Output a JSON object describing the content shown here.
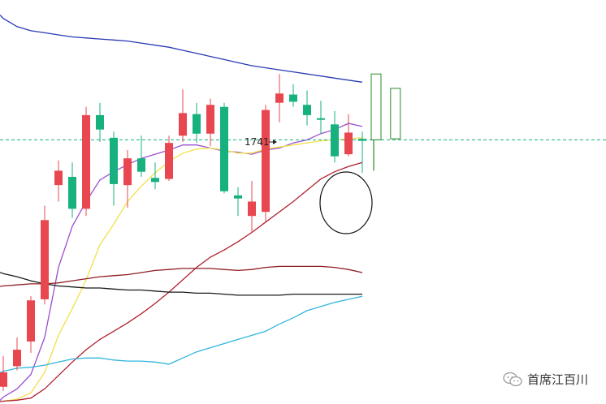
{
  "chart_data": {
    "type": "candlestick",
    "price_annotation": "1741",
    "colors": {
      "up": "#e8474f",
      "down": "#16b17e",
      "projection": "#2a8a2a",
      "reference": "#16b17e"
    },
    "ylim": [
      1460,
      1840
    ],
    "reference_line": 1712,
    "candles": [
      {
        "o": 1472,
        "c": 1486,
        "h": 1502,
        "l": 1468
      },
      {
        "o": 1492,
        "c": 1508,
        "h": 1520,
        "l": 1488
      },
      {
        "o": 1516,
        "c": 1556,
        "h": 1560,
        "l": 1505
      },
      {
        "o": 1557,
        "c": 1634,
        "h": 1648,
        "l": 1552
      },
      {
        "o": 1668,
        "c": 1682,
        "h": 1692,
        "l": 1652
      },
      {
        "o": 1676,
        "c": 1645,
        "h": 1690,
        "l": 1636
      },
      {
        "o": 1645,
        "c": 1736,
        "h": 1744,
        "l": 1638
      },
      {
        "o": 1736,
        "c": 1722,
        "h": 1748,
        "l": 1710
      },
      {
        "o": 1714,
        "c": 1669,
        "h": 1720,
        "l": 1648
      },
      {
        "o": 1668,
        "c": 1694,
        "h": 1702,
        "l": 1646
      },
      {
        "o": 1694,
        "c": 1681,
        "h": 1716,
        "l": 1676
      },
      {
        "o": 1675,
        "c": 1671,
        "h": 1690,
        "l": 1664
      },
      {
        "o": 1674,
        "c": 1709,
        "h": 1716,
        "l": 1672
      },
      {
        "o": 1716,
        "c": 1738,
        "h": 1761,
        "l": 1710
      },
      {
        "o": 1737,
        "c": 1718,
        "h": 1748,
        "l": 1709
      },
      {
        "o": 1718,
        "c": 1746,
        "h": 1752,
        "l": 1706
      },
      {
        "o": 1744,
        "c": 1662,
        "h": 1748,
        "l": 1660
      },
      {
        "o": 1658,
        "c": 1655,
        "h": 1666,
        "l": 1638
      },
      {
        "o": 1638,
        "c": 1652,
        "h": 1672,
        "l": 1623
      },
      {
        "o": 1642,
        "c": 1741,
        "h": 1746,
        "l": 1632
      },
      {
        "o": 1748,
        "c": 1757,
        "h": 1776,
        "l": 1729
      },
      {
        "o": 1756,
        "c": 1749,
        "h": 1766,
        "l": 1744
      },
      {
        "o": 1746,
        "c": 1736,
        "h": 1760,
        "l": 1726
      },
      {
        "o": 1733,
        "c": 1732,
        "h": 1750,
        "l": 1718
      },
      {
        "o": 1727,
        "c": 1696,
        "h": 1740,
        "l": 1690
      },
      {
        "o": 1698,
        "c": 1719,
        "h": 1737,
        "l": 1696
      },
      {
        "o": 1713,
        "c": 1711,
        "h": 1720,
        "l": 1680
      }
    ],
    "projection_boxes": [
      {
        "top": 1776,
        "bottom": 1712
      },
      {
        "top": 1762,
        "bottom": 1713
      }
    ],
    "moving_averages": [
      {
        "color": "#2a3ab3",
        "values": [
          1830,
          1822,
          1818,
          1816,
          1814,
          1812,
          1811,
          1810,
          1809,
          1808,
          1806,
          1804,
          1802,
          1799,
          1796,
          1793,
          1790,
          1787,
          1784,
          1782,
          1780,
          1778,
          1776,
          1774,
          1772,
          1770,
          1768
        ]
      },
      {
        "color": "#9a4fd0",
        "values": [
          1462,
          1470,
          1484,
          1520,
          1588,
          1628,
          1652,
          1673,
          1681,
          1688,
          1694,
          1698,
          1702,
          1707,
          1707,
          1704,
          1701,
          1700,
          1698,
          1702,
          1704,
          1709,
          1712,
          1718,
          1722,
          1728,
          1725
        ]
      },
      {
        "color": "#f2e04a",
        "values": [
          1458,
          1460,
          1466,
          1486,
          1522,
          1548,
          1576,
          1610,
          1630,
          1652,
          1667,
          1680,
          1691,
          1699,
          1703,
          1704,
          1702,
          1699,
          1699,
          1703,
          1705,
          1707,
          1709,
          1711,
          1712,
          1713,
          1714
        ]
      },
      {
        "color": "#b0202f",
        "values": [
          1458,
          1459,
          1461,
          1470,
          1483,
          1496,
          1508,
          1518,
          1526,
          1534,
          1543,
          1553,
          1564,
          1576,
          1588,
          1598,
          1605,
          1613,
          1622,
          1632,
          1642,
          1652,
          1663,
          1674,
          1681,
          1686,
          1690
        ]
      },
      {
        "color": "#30b5dc",
        "values": [
          1487,
          1490,
          1491,
          1493,
          1496,
          1499,
          1500,
          1500,
          1498,
          1497,
          1497,
          1496,
          1494,
          1500,
          1506,
          1510,
          1514,
          1518,
          1522,
          1526,
          1533,
          1539,
          1546,
          1550,
          1554,
          1557,
          1560
        ]
      },
      {
        "color": "#8f1d24",
        "values": [
          1570,
          1571,
          1572,
          1572,
          1573,
          1575,
          1577,
          1579,
          1580,
          1581,
          1583,
          1585,
          1586,
          1587,
          1587,
          1587,
          1586,
          1585,
          1586,
          1588,
          1589,
          1589,
          1589,
          1589,
          1588,
          1586,
          1583
        ]
      },
      {
        "color": "#1a1a1a",
        "values": [
          1582,
          1579,
          1575,
          1572,
          1570,
          1569,
          1568,
          1568,
          1567,
          1566,
          1566,
          1565,
          1564,
          1564,
          1563,
          1563,
          1562,
          1561,
          1561,
          1561,
          1561,
          1562,
          1562,
          1562,
          1562,
          1562,
          1562
        ]
      }
    ]
  },
  "watermark": {
    "text": "首席江百川",
    "icon": "wechat-icon"
  }
}
